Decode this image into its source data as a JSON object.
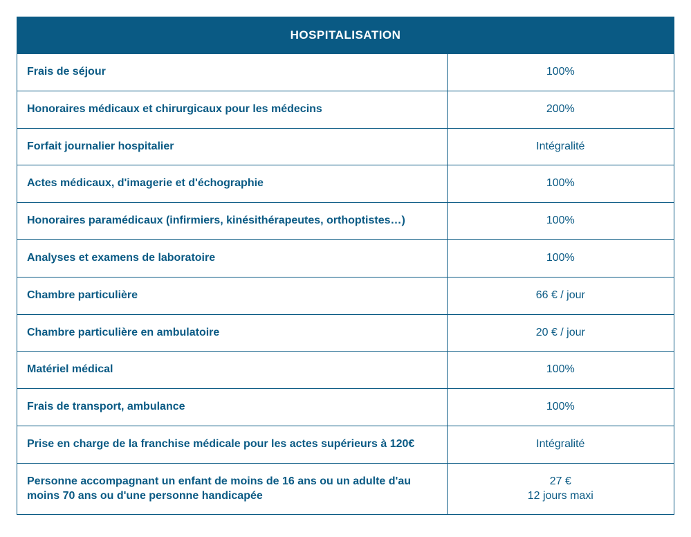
{
  "table": {
    "header": "HOSPITALISATION",
    "header_bg": "#0a5a84",
    "header_color": "#ffffff",
    "border_color": "#0a5a84",
    "text_color": "#0a5a84",
    "rows": [
      {
        "label": "Frais de séjour",
        "value": "100%"
      },
      {
        "label": "Honoraires médicaux et  chirurgicaux pour les médecins",
        "value": "200%"
      },
      {
        "label": "Forfait journalier hospitalier",
        "value": "Intégralité"
      },
      {
        "label": "Actes médicaux, d'imagerie et d'échographie",
        "value": "100%"
      },
      {
        "label": "Honoraires paramédicaux (infirmiers, kinésithérapeutes, orthoptistes…)",
        "value": "100%"
      },
      {
        "label": "Analyses et examens de laboratoire",
        "value": "100%"
      },
      {
        "label": "Chambre particulière",
        "value": "66 € / jour"
      },
      {
        "label": "Chambre particulière en ambulatoire",
        "value": "20 € / jour"
      },
      {
        "label": "Matériel médical",
        "value": "100%"
      },
      {
        "label": "Frais de transport, ambulance",
        "value": "100%"
      },
      {
        "label": "Prise en charge de la franchise médicale pour les actes supérieurs à 120€",
        "value": "Intégralité"
      },
      {
        "label": "Personne accompagnant un enfant de moins de 16 ans ou un adulte d'au moins 70 ans ou d'une personne handicapée",
        "value": "27 €",
        "value2": "12 jours maxi"
      }
    ]
  }
}
